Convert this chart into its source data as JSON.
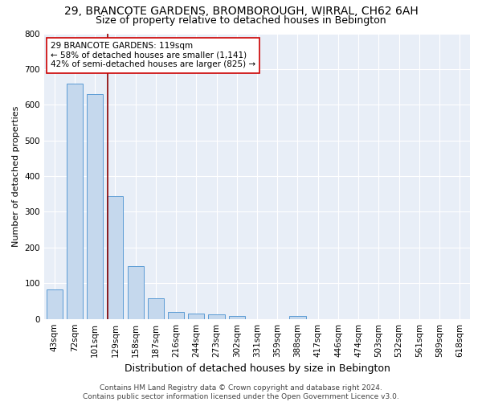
{
  "title": "29, BRANCOTE GARDENS, BROMBOROUGH, WIRRAL, CH62 6AH",
  "subtitle": "Size of property relative to detached houses in Bebington",
  "xlabel": "Distribution of detached houses by size in Bebington",
  "ylabel": "Number of detached properties",
  "categories": [
    "43sqm",
    "72sqm",
    "101sqm",
    "129sqm",
    "158sqm",
    "187sqm",
    "216sqm",
    "244sqm",
    "273sqm",
    "302sqm",
    "331sqm",
    "359sqm",
    "388sqm",
    "417sqm",
    "446sqm",
    "474sqm",
    "503sqm",
    "532sqm",
    "561sqm",
    "589sqm",
    "618sqm"
  ],
  "values": [
    82,
    660,
    630,
    345,
    147,
    57,
    20,
    15,
    12,
    8,
    0,
    0,
    8,
    0,
    0,
    0,
    0,
    0,
    0,
    0,
    0
  ],
  "bar_color": "#c5d8ed",
  "bar_edge_color": "#5b9bd5",
  "bar_width": 0.8,
  "ylim": [
    0,
    800
  ],
  "yticks": [
    0,
    100,
    200,
    300,
    400,
    500,
    600,
    700,
    800
  ],
  "vline_x": 2.643,
  "vline_color": "#8b0000",
  "annotation_text": "29 BRANCOTE GARDENS: 119sqm\n← 58% of detached houses are smaller (1,141)\n42% of semi-detached houses are larger (825) →",
  "annotation_box_facecolor": "#ffffff",
  "annotation_box_edgecolor": "#cc0000",
  "footer_text": "Contains HM Land Registry data © Crown copyright and database right 2024.\nContains public sector information licensed under the Open Government Licence v3.0.",
  "bg_color": "#e8eef7",
  "grid_color": "#ffffff",
  "fig_bg_color": "#ffffff",
  "title_fontsize": 10,
  "subtitle_fontsize": 9,
  "xlabel_fontsize": 9,
  "ylabel_fontsize": 8,
  "tick_fontsize": 7.5,
  "annotation_fontsize": 7.5,
  "footer_fontsize": 6.5
}
